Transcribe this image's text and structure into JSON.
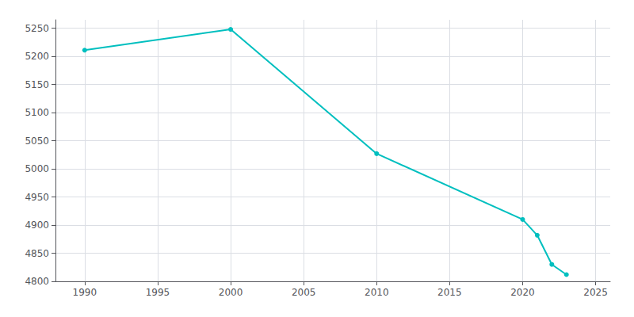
{
  "chart_data": {
    "type": "line",
    "x": [
      1990,
      2000,
      2010,
      2020,
      2021,
      2022,
      2023
    ],
    "values": [
      5211,
      5248,
      5027,
      4910,
      4882,
      4830,
      4812
    ],
    "color": "#00BFBF",
    "marker": "circle",
    "xlim": [
      1988,
      2026
    ],
    "xticks": [
      1990,
      1995,
      2000,
      2005,
      2010,
      2015,
      2020,
      2025
    ],
    "ylim": [
      4800,
      5265
    ],
    "yticks": [
      4800,
      4850,
      4900,
      4950,
      5000,
      5050,
      5100,
      5150,
      5200,
      5250
    ],
    "grid": true
  }
}
